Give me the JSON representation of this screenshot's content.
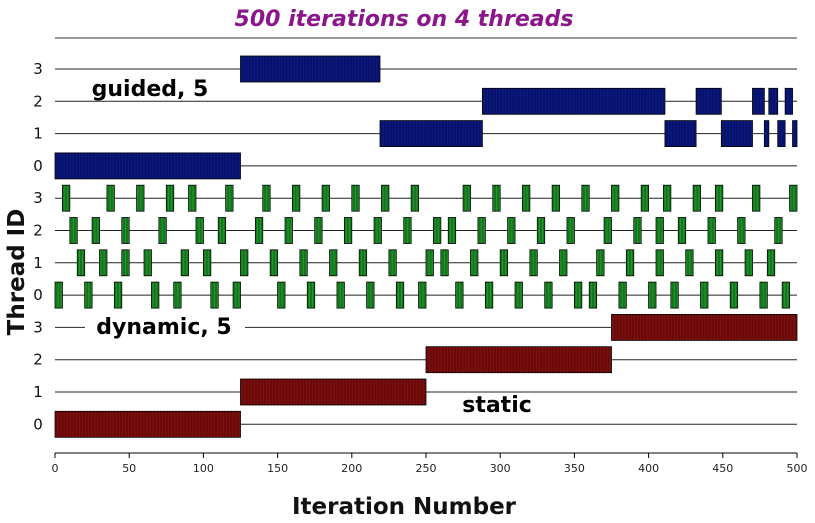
{
  "chart_data": {
    "type": "bar",
    "title": "500 iterations on 4 threads",
    "xlabel": "Iteration Number",
    "ylabel": "Thread ID",
    "xlim": [
      0,
      500
    ],
    "x_ticks": [
      "0",
      "50",
      "100",
      "150",
      "200",
      "250",
      "300",
      "350",
      "400",
      "450",
      "500"
    ],
    "grid": "horizontal lines per thread row",
    "groups": [
      {
        "name": "guided, 5",
        "color": "#0b1a8c",
        "threads": [
          {
            "thread": "3",
            "segments": [
              [
                125,
                219
              ]
            ]
          },
          {
            "thread": "2",
            "segments": [
              [
                288,
                411
              ],
              [
                432,
                449
              ],
              [
                470,
                478
              ],
              [
                481,
                487
              ],
              [
                492,
                497
              ]
            ]
          },
          {
            "thread": "1",
            "segments": [
              [
                219,
                288
              ],
              [
                411,
                432
              ],
              [
                449,
                470
              ],
              [
                478,
                481
              ],
              [
                487,
                492
              ],
              [
                497,
                500
              ]
            ]
          },
          {
            "thread": "0",
            "segments": [
              [
                0,
                125
              ]
            ]
          }
        ]
      },
      {
        "name": "dynamic, 5",
        "color": "#1e9e2a",
        "threads": [
          {
            "thread": "3",
            "segments": [
              [
                5,
                10
              ],
              [
                35,
                40
              ],
              [
                55,
                60
              ],
              [
                75,
                80
              ],
              [
                90,
                95
              ],
              [
                115,
                120
              ],
              [
                140,
                145
              ],
              [
                160,
                165
              ],
              [
                180,
                185
              ],
              [
                200,
                205
              ],
              [
                220,
                225
              ],
              [
                240,
                245
              ],
              [
                275,
                280
              ],
              [
                295,
                300
              ],
              [
                315,
                320
              ],
              [
                335,
                340
              ],
              [
                355,
                360
              ],
              [
                375,
                380
              ],
              [
                395,
                400
              ],
              [
                410,
                415
              ],
              [
                430,
                435
              ],
              [
                445,
                450
              ],
              [
                470,
                475
              ],
              [
                495,
                500
              ]
            ]
          },
          {
            "thread": "2",
            "segments": [
              [
                10,
                15
              ],
              [
                25,
                30
              ],
              [
                45,
                50
              ],
              [
                70,
                75
              ],
              [
                95,
                100
              ],
              [
                110,
                115
              ],
              [
                135,
                140
              ],
              [
                155,
                160
              ],
              [
                175,
                180
              ],
              [
                195,
                200
              ],
              [
                215,
                220
              ],
              [
                235,
                240
              ],
              [
                255,
                260
              ],
              [
                265,
                270
              ],
              [
                285,
                290
              ],
              [
                305,
                310
              ],
              [
                325,
                330
              ],
              [
                345,
                350
              ],
              [
                370,
                375
              ],
              [
                390,
                395
              ],
              [
                405,
                410
              ],
              [
                420,
                425
              ],
              [
                440,
                445
              ],
              [
                460,
                465
              ],
              [
                485,
                490
              ]
            ]
          },
          {
            "thread": "1",
            "segments": [
              [
                15,
                20
              ],
              [
                30,
                35
              ],
              [
                45,
                50
              ],
              [
                60,
                65
              ],
              [
                85,
                90
              ],
              [
                100,
                105
              ],
              [
                125,
                130
              ],
              [
                145,
                150
              ],
              [
                165,
                170
              ],
              [
                185,
                190
              ],
              [
                205,
                210
              ],
              [
                225,
                230
              ],
              [
                250,
                255
              ],
              [
                260,
                265
              ],
              [
                280,
                285
              ],
              [
                300,
                305
              ],
              [
                320,
                325
              ],
              [
                340,
                345
              ],
              [
                365,
                370
              ],
              [
                385,
                390
              ],
              [
                405,
                410
              ],
              [
                425,
                430
              ],
              [
                445,
                450
              ],
              [
                465,
                470
              ],
              [
                480,
                485
              ]
            ]
          },
          {
            "thread": "0",
            "segments": [
              [
                0,
                5
              ],
              [
                20,
                25
              ],
              [
                40,
                45
              ],
              [
                65,
                70
              ],
              [
                80,
                85
              ],
              [
                105,
                110
              ],
              [
                120,
                125
              ],
              [
                150,
                155
              ],
              [
                170,
                175
              ],
              [
                190,
                195
              ],
              [
                210,
                215
              ],
              [
                230,
                235
              ],
              [
                245,
                250
              ],
              [
                270,
                275
              ],
              [
                290,
                295
              ],
              [
                310,
                315
              ],
              [
                330,
                335
              ],
              [
                350,
                355
              ],
              [
                360,
                365
              ],
              [
                380,
                385
              ],
              [
                400,
                405
              ],
              [
                415,
                420
              ],
              [
                435,
                440
              ],
              [
                455,
                460
              ],
              [
                475,
                480
              ],
              [
                490,
                495
              ]
            ]
          }
        ]
      },
      {
        "name": "static",
        "color": "#8b0f0f",
        "threads": [
          {
            "thread": "3",
            "segments": [
              [
                375,
                500
              ]
            ]
          },
          {
            "thread": "2",
            "segments": [
              [
                250,
                375
              ]
            ]
          },
          {
            "thread": "1",
            "segments": [
              [
                125,
                250
              ]
            ]
          },
          {
            "thread": "0",
            "segments": [
              [
                0,
                125
              ]
            ]
          }
        ]
      }
    ]
  }
}
